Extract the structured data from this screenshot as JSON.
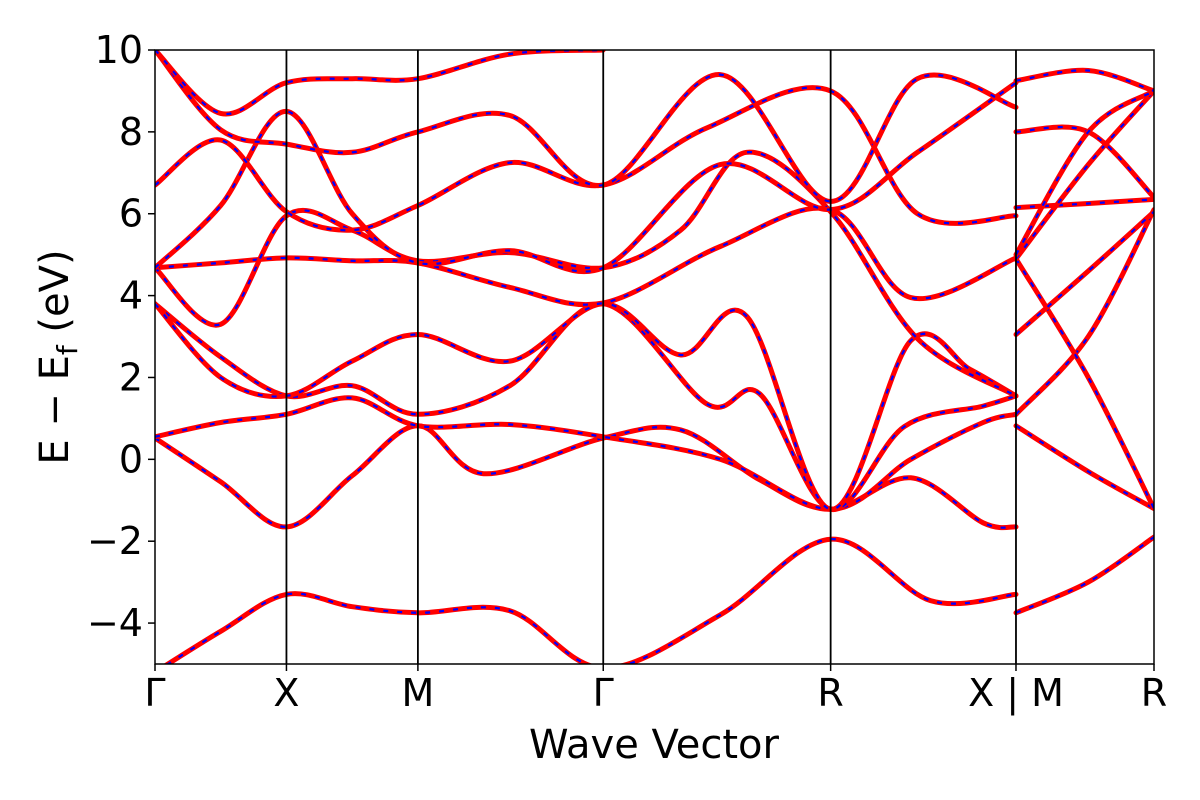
{
  "chart_data": {
    "type": "line",
    "title": "",
    "xlabel": "Wave Vector",
    "ylabel_main": "E − E",
    "ylabel_sub": "f",
    "ylabel_unit": " (eV)",
    "ylim": [
      -5,
      10
    ],
    "yticks": [
      -4,
      -2,
      0,
      2,
      4,
      6,
      8,
      10
    ],
    "ytick_labels": [
      "−4",
      "−2",
      "0",
      "2",
      "4",
      "6",
      "8",
      "10"
    ],
    "xlim": [
      0,
      7.6
    ],
    "kpoints": [
      {
        "label": "Γ",
        "x": 0
      },
      {
        "label": "X",
        "x": 1
      },
      {
        "label": "M",
        "x": 2
      },
      {
        "label": "Γ",
        "x": 3.41
      },
      {
        "label": "R",
        "x": 5.14
      },
      {
        "label": "X | M",
        "x": 6.55
      },
      {
        "label": "R",
        "x": 7.6
      }
    ],
    "grid": false,
    "legend": "none",
    "colors": {
      "solid": "#ff0000",
      "dashed": "#0000ff",
      "frame": "#000000"
    },
    "series": [
      {
        "x": [
          0,
          0.5,
          1,
          1.5,
          2,
          2.7,
          3.41,
          4.3,
          5.14,
          5.9,
          6.55
        ],
        "values": [
          -5.2,
          -4.2,
          -3.3,
          -3.6,
          -3.75,
          -3.7,
          -5.1,
          -3.8,
          -1.95,
          -3.45,
          -3.3
        ]
      },
      {
        "x": [
          6.55,
          7.1,
          7.6
        ],
        "values": [
          -3.75,
          -3.0,
          -1.9
        ]
      },
      {
        "x": [
          0,
          0.5,
          1,
          1.5,
          2,
          2.5,
          3.41,
          4.0,
          4.6,
          5.14,
          5.75,
          6.3,
          6.55
        ],
        "values": [
          0.52,
          -0.55,
          -1.65,
          -0.4,
          0.82,
          -0.35,
          0.52,
          0.72,
          -0.5,
          -1.22,
          -0.45,
          -1.55,
          -1.65
        ]
      },
      {
        "x": [
          6.55,
          7.1,
          7.6
        ],
        "values": [
          0.82,
          -0.3,
          -1.2
        ]
      },
      {
        "x": [
          0,
          0.5,
          1,
          1.5,
          2,
          2.7,
          3.41,
          4.3,
          5.14,
          5.75,
          6.3,
          6.55
        ],
        "values": [
          0.55,
          0.9,
          1.1,
          1.5,
          0.82,
          0.85,
          0.55,
          0.0,
          -1.22,
          0.0,
          0.9,
          1.1
        ]
      },
      {
        "x": [
          6.55,
          7.1,
          7.6
        ],
        "values": [
          1.1,
          3.0,
          6.1
        ]
      },
      {
        "x": [
          0,
          0.5,
          1,
          1.5,
          2,
          2.7,
          3.41,
          4.2,
          4.6,
          5.14,
          5.7,
          6.3,
          6.55
        ],
        "values": [
          3.8,
          2.5,
          1.55,
          1.8,
          1.1,
          1.8,
          3.8,
          1.35,
          1.6,
          -1.22,
          0.8,
          1.3,
          1.55
        ]
      },
      {
        "x": [
          6.55,
          7.1,
          7.6
        ],
        "values": [
          4.9,
          2.0,
          -1.2
        ]
      },
      {
        "x": [
          0,
          0.5,
          1,
          1.5,
          2,
          2.7,
          3.41,
          4.0,
          4.5,
          5.14,
          5.75,
          6.2,
          6.55
        ],
        "values": [
          3.8,
          2.0,
          1.55,
          2.4,
          3.05,
          2.4,
          3.8,
          2.55,
          3.5,
          -1.22,
          2.9,
          2.2,
          1.55
        ]
      },
      {
        "x": [
          6.55,
          7.1,
          7.6
        ],
        "values": [
          3.05,
          4.6,
          6.05
        ]
      },
      {
        "x": [
          0,
          0.5,
          1,
          1.5,
          2,
          2.7,
          3.41,
          4.3,
          5.14,
          5.75,
          6.55
        ],
        "values": [
          4.68,
          4.8,
          4.92,
          4.85,
          4.8,
          4.2,
          3.82,
          5.2,
          6.1,
          3.95,
          4.92
        ]
      },
      {
        "x": [
          6.55,
          7.1,
          7.6
        ],
        "values": [
          6.15,
          6.25,
          6.35
        ]
      },
      {
        "x": [
          0,
          0.5,
          1,
          1.5,
          2,
          2.7,
          3.41,
          4.0,
          4.5,
          5.14,
          5.8,
          6.55
        ],
        "values": [
          4.68,
          3.3,
          5.95,
          5.6,
          4.85,
          5.05,
          4.68,
          5.6,
          7.5,
          6.05,
          2.95,
          1.55
        ]
      },
      {
        "x": [
          6.55,
          7.1,
          7.6
        ],
        "values": [
          4.9,
          7.2,
          9.0
        ]
      },
      {
        "x": [
          0,
          0.5,
          1,
          1.5,
          2,
          2.7,
          3.41,
          4.3,
          5.14,
          5.8,
          6.55
        ],
        "values": [
          4.68,
          6.2,
          8.5,
          6.0,
          4.8,
          5.1,
          4.68,
          7.2,
          6.1,
          7.5,
          9.2
        ]
      },
      {
        "x": [
          6.55,
          7.1,
          7.6
        ],
        "values": [
          8.0,
          8.0,
          6.4
        ]
      },
      {
        "x": [
          0,
          0.5,
          1,
          1.5,
          2,
          2.7,
          3.41,
          4.2,
          5.14,
          5.8,
          6.55
        ],
        "values": [
          6.7,
          7.8,
          6.05,
          5.6,
          6.2,
          7.25,
          6.7,
          8.1,
          9.0,
          6.0,
          5.95
        ]
      },
      {
        "x": [
          6.55,
          7.1,
          7.6
        ],
        "values": [
          5.0,
          8.0,
          9.0
        ]
      },
      {
        "x": [
          0,
          0.5,
          1,
          1.5,
          2,
          2.7,
          3.41,
          4.3,
          5.14,
          5.8,
          6.55
        ],
        "values": [
          10.0,
          8.05,
          7.7,
          7.5,
          8.0,
          8.4,
          6.7,
          9.4,
          6.3,
          9.3,
          8.6
        ]
      },
      {
        "x": [
          6.55,
          7.1,
          7.6
        ],
        "values": [
          9.25,
          9.5,
          9.0
        ]
      },
      {
        "x": [
          0,
          0.5,
          1,
          1.5,
          2,
          2.7,
          3.41
        ],
        "values": [
          10.0,
          8.45,
          9.2,
          9.3,
          9.3,
          9.9,
          10.0
        ]
      }
    ]
  }
}
